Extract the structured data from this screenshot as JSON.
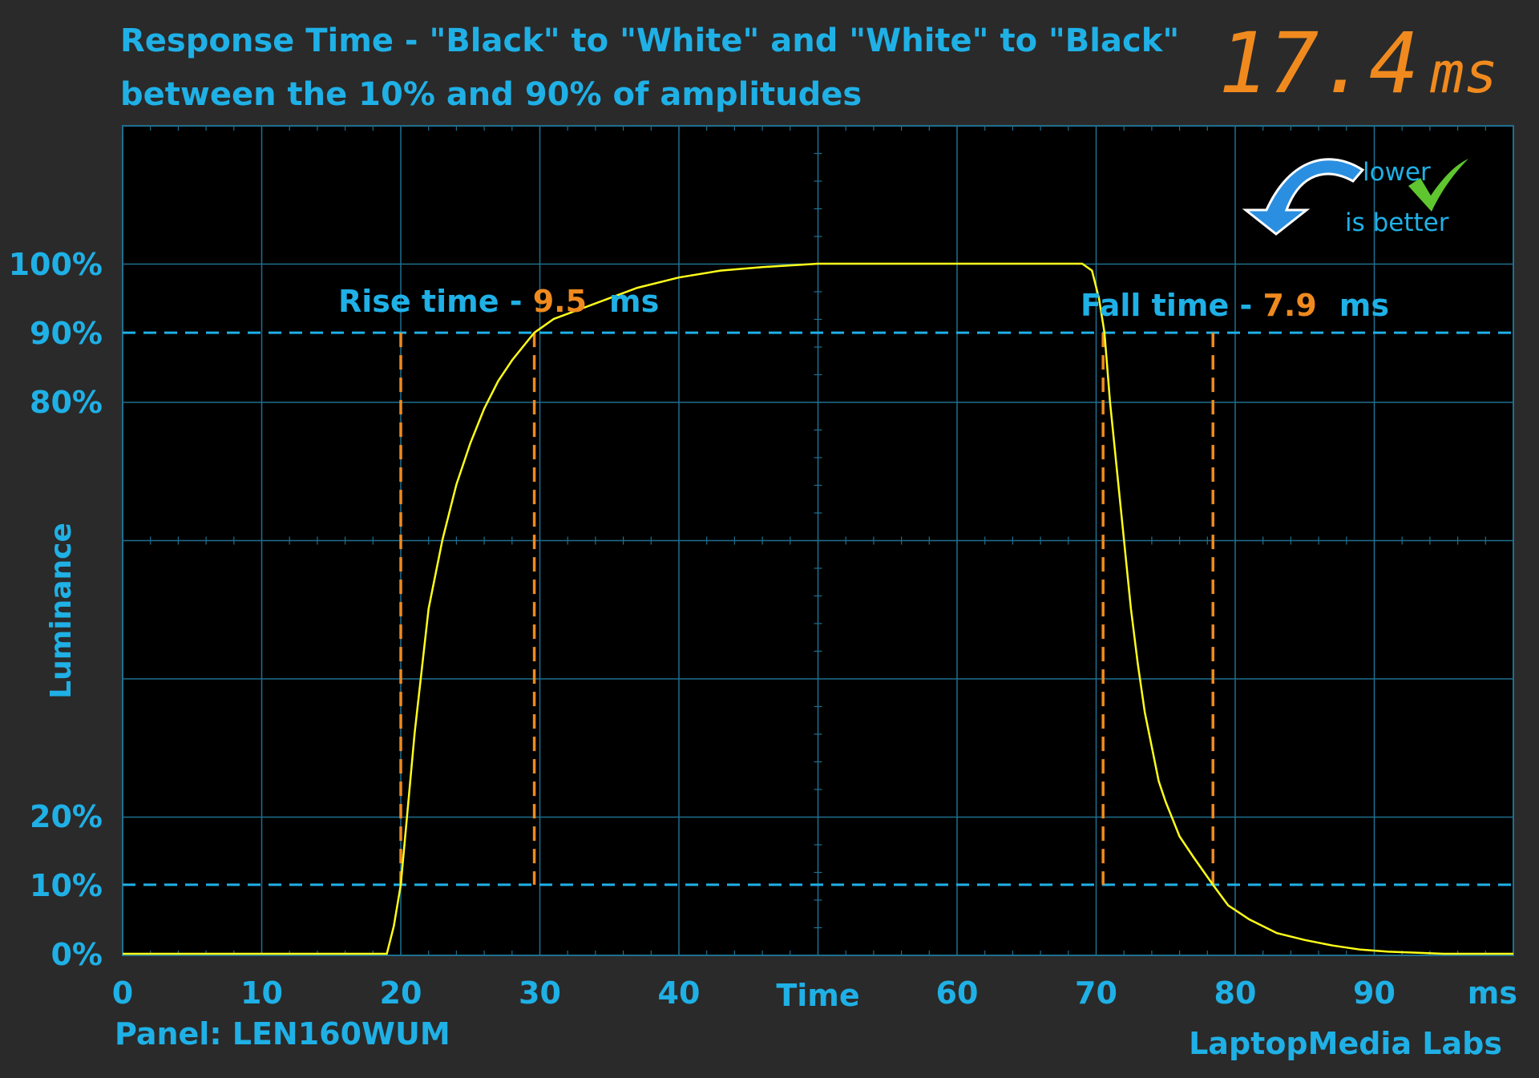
{
  "title_line1": "Response Time - \"Black\" to \"White\" and \"White\" to \"Black\"",
  "title_line2": "between the 10% and 90% of amplitudes",
  "total_value": "17.4",
  "total_unit": "ms",
  "badge": {
    "line1": "lower",
    "line2": "is better",
    "icons": [
      "blue-curved-arrow-down-icon",
      "green-checkmark-icon"
    ]
  },
  "rise_label": {
    "prefix": "Rise time - ",
    "value": "9.5",
    "unit": "ms"
  },
  "fall_label": {
    "prefix": "Fall time - ",
    "value": "7.9",
    "unit": "ms"
  },
  "panel": "Panel: LEN160WUM",
  "lab": "LaptopMedia Labs",
  "colors": {
    "background": "#2a2a2a",
    "plot_bg": "#000000",
    "accent_blue": "#1fb0e6",
    "orange": "#f08a1e",
    "trace": "#ffff1a",
    "grid": "#1f6f8f"
  },
  "chart_data": {
    "type": "line",
    "xlabel": "Time",
    "ylabel": "Luminance",
    "x_unit": "ms",
    "xlim": [
      0,
      100
    ],
    "ylim": [
      0,
      100
    ],
    "x_ticks": [
      0,
      10,
      20,
      30,
      40,
      60,
      70,
      80,
      90
    ],
    "x_tick_labels": [
      "0",
      "10",
      "20",
      "30",
      "40",
      "60",
      "70",
      "80",
      "90"
    ],
    "y_ticks": [
      0,
      10,
      20,
      80,
      90,
      100
    ],
    "y_tick_labels": [
      "0%",
      "10%",
      "20%",
      "80%",
      "90%",
      "100%"
    ],
    "threshold_levels": [
      10,
      90
    ],
    "rise_markers": [
      20.0,
      29.6
    ],
    "fall_markers": [
      70.5,
      78.4
    ],
    "series": [
      {
        "x": [
          0,
          19.0,
          19.5,
          20.0,
          21.0,
          22.0,
          23.0,
          24.0,
          25.0,
          26.0,
          27.0,
          28.0,
          29.0,
          29.6,
          31.0,
          33.0,
          35.0,
          37.0,
          40.0,
          43.0,
          46.0,
          50.0,
          55.0,
          60.0,
          65.0,
          69.0,
          69.7,
          70.2,
          70.6,
          71.0,
          71.5,
          72.0,
          72.5,
          73.0,
          73.5,
          74.0,
          74.5,
          75.0,
          76.0,
          77.0,
          78.4,
          79.5,
          81.0,
          83.0,
          85.0,
          87.0,
          89.0,
          91.0,
          95.0,
          100.0
        ],
        "y": [
          0,
          0,
          4,
          10,
          32,
          50,
          60,
          68,
          74,
          79,
          83,
          86,
          88.5,
          90,
          92,
          93.5,
          95,
          96.5,
          98,
          99,
          99.5,
          100,
          100,
          100,
          100,
          100,
          99,
          95,
          90,
          80,
          70,
          60,
          50,
          42,
          35,
          30,
          25,
          22,
          17,
          14,
          10,
          7,
          5,
          3,
          2,
          1.2,
          0.6,
          0.3,
          0,
          0
        ]
      }
    ]
  }
}
